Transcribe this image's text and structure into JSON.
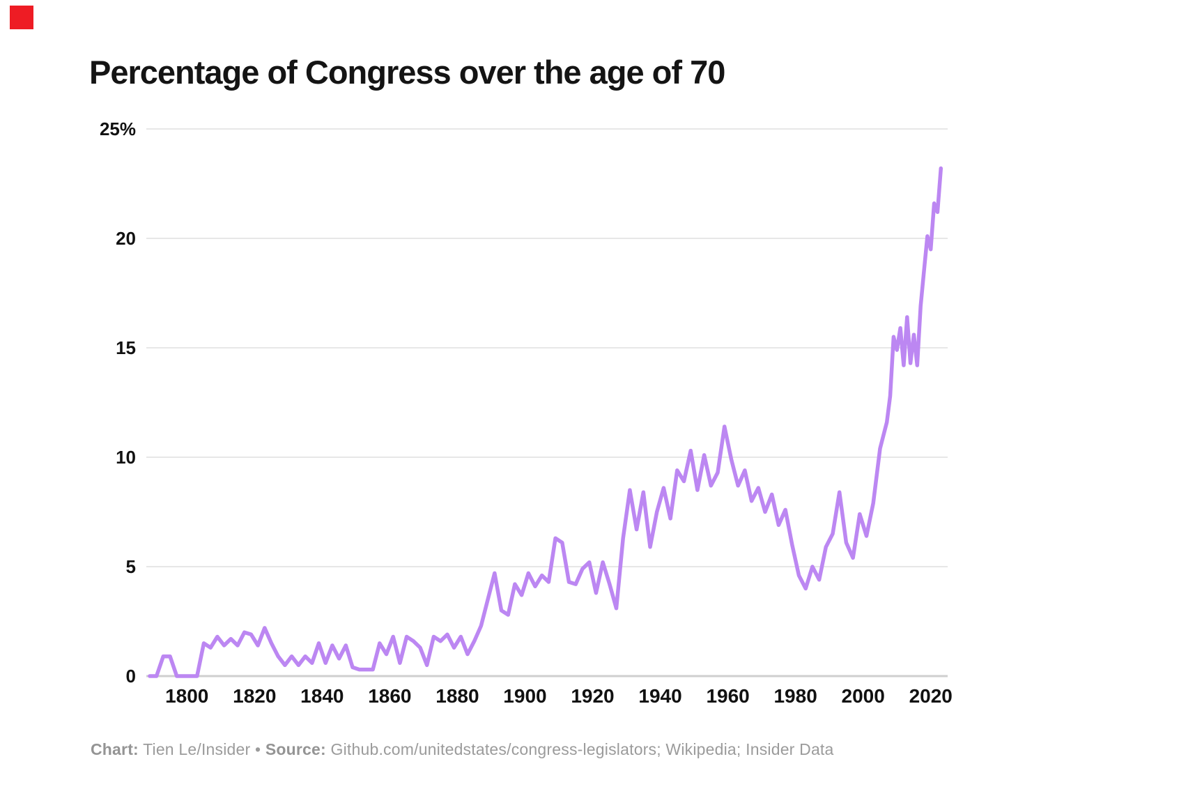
{
  "page": {
    "corner_mark_color": "#ee1c24",
    "background": "#ffffff"
  },
  "header": {
    "title": "Percentage of Congress over the age of 70"
  },
  "footer": {
    "chart_label": "Chart:",
    "chart_credit": "Tien Le/Insider",
    "separator": "•",
    "source_label": "Source:",
    "source_text": "Github.com/unitedstates/congress-legislators; Wikipedia; Insider Data"
  },
  "chart_data": {
    "type": "line",
    "title": "Percentage of Congress over the age of 70",
    "xlabel": "",
    "ylabel": "",
    "xlim": [
      1788,
      2025
    ],
    "ylim": [
      0,
      25
    ],
    "x_ticks": [
      1800,
      1820,
      1840,
      1860,
      1880,
      1900,
      1920,
      1940,
      1960,
      1980,
      2000,
      2020
    ],
    "y_ticks": [
      0,
      5,
      10,
      15,
      20,
      25
    ],
    "y_tick_labels": [
      "0",
      "5",
      "10",
      "15",
      "20",
      "25%"
    ],
    "grid": "horizontal",
    "legend": "none",
    "line_color": "#bc87f2",
    "grid_color": "#e7e7e7",
    "axis_color": "#cfcfcf",
    "series": [
      {
        "name": "Percentage of Congress over age 70",
        "points": [
          [
            1789,
            0
          ],
          [
            1791,
            0
          ],
          [
            1793,
            0.9
          ],
          [
            1795,
            0.9
          ],
          [
            1797,
            0
          ],
          [
            1799,
            0
          ],
          [
            1801,
            0
          ],
          [
            1803,
            0
          ],
          [
            1805,
            1.5
          ],
          [
            1807,
            1.3
          ],
          [
            1809,
            1.8
          ],
          [
            1811,
            1.4
          ],
          [
            1813,
            1.7
          ],
          [
            1815,
            1.4
          ],
          [
            1817,
            2.0
          ],
          [
            1819,
            1.9
          ],
          [
            1821,
            1.4
          ],
          [
            1823,
            2.2
          ],
          [
            1825,
            1.5
          ],
          [
            1827,
            0.9
          ],
          [
            1829,
            0.5
          ],
          [
            1831,
            0.9
          ],
          [
            1833,
            0.5
          ],
          [
            1835,
            0.9
          ],
          [
            1837,
            0.6
          ],
          [
            1839,
            1.5
          ],
          [
            1841,
            0.6
          ],
          [
            1843,
            1.4
          ],
          [
            1845,
            0.8
          ],
          [
            1847,
            1.4
          ],
          [
            1849,
            0.4
          ],
          [
            1851,
            0.3
          ],
          [
            1853,
            0.3
          ],
          [
            1855,
            0.3
          ],
          [
            1857,
            1.5
          ],
          [
            1859,
            1.0
          ],
          [
            1861,
            1.8
          ],
          [
            1863,
            0.6
          ],
          [
            1865,
            1.8
          ],
          [
            1867,
            1.6
          ],
          [
            1869,
            1.3
          ],
          [
            1871,
            0.5
          ],
          [
            1873,
            1.8
          ],
          [
            1875,
            1.6
          ],
          [
            1877,
            1.9
          ],
          [
            1879,
            1.3
          ],
          [
            1881,
            1.8
          ],
          [
            1883,
            1.0
          ],
          [
            1885,
            1.6
          ],
          [
            1887,
            2.3
          ],
          [
            1889,
            3.5
          ],
          [
            1891,
            4.7
          ],
          [
            1893,
            3.0
          ],
          [
            1895,
            2.8
          ],
          [
            1897,
            4.2
          ],
          [
            1899,
            3.7
          ],
          [
            1901,
            4.7
          ],
          [
            1903,
            4.1
          ],
          [
            1905,
            4.6
          ],
          [
            1907,
            4.3
          ],
          [
            1909,
            6.3
          ],
          [
            1911,
            6.1
          ],
          [
            1913,
            4.3
          ],
          [
            1915,
            4.2
          ],
          [
            1917,
            4.9
          ],
          [
            1919,
            5.2
          ],
          [
            1921,
            3.8
          ],
          [
            1923,
            5.2
          ],
          [
            1925,
            4.2
          ],
          [
            1927,
            3.1
          ],
          [
            1929,
            6.3
          ],
          [
            1931,
            8.5
          ],
          [
            1933,
            6.7
          ],
          [
            1935,
            8.4
          ],
          [
            1937,
            5.9
          ],
          [
            1939,
            7.5
          ],
          [
            1941,
            8.6
          ],
          [
            1943,
            7.2
          ],
          [
            1945,
            9.4
          ],
          [
            1947,
            8.9
          ],
          [
            1949,
            10.3
          ],
          [
            1951,
            8.5
          ],
          [
            1953,
            10.1
          ],
          [
            1955,
            8.7
          ],
          [
            1957,
            9.3
          ],
          [
            1959,
            11.4
          ],
          [
            1961,
            9.9
          ],
          [
            1963,
            8.7
          ],
          [
            1965,
            9.4
          ],
          [
            1967,
            8.0
          ],
          [
            1969,
            8.6
          ],
          [
            1971,
            7.5
          ],
          [
            1973,
            8.3
          ],
          [
            1975,
            6.9
          ],
          [
            1977,
            7.6
          ],
          [
            1979,
            6.0
          ],
          [
            1981,
            4.6
          ],
          [
            1983,
            4.0
          ],
          [
            1985,
            5.0
          ],
          [
            1987,
            4.4
          ],
          [
            1989,
            5.9
          ],
          [
            1991,
            6.5
          ],
          [
            1993,
            8.4
          ],
          [
            1995,
            6.1
          ],
          [
            1997,
            5.4
          ],
          [
            1999,
            7.4
          ],
          [
            2001,
            6.4
          ],
          [
            2003,
            7.9
          ],
          [
            2005,
            10.4
          ],
          [
            2007,
            11.6
          ],
          [
            2008,
            12.8
          ],
          [
            2009,
            15.5
          ],
          [
            2010,
            14.9
          ],
          [
            2011,
            15.9
          ],
          [
            2012,
            14.2
          ],
          [
            2013,
            16.4
          ],
          [
            2014,
            14.3
          ],
          [
            2015,
            15.6
          ],
          [
            2016,
            14.2
          ],
          [
            2017,
            16.9
          ],
          [
            2018,
            18.5
          ],
          [
            2019,
            20.1
          ],
          [
            2020,
            19.5
          ],
          [
            2021,
            21.6
          ],
          [
            2022,
            21.2
          ],
          [
            2023,
            23.2
          ]
        ]
      }
    ]
  }
}
